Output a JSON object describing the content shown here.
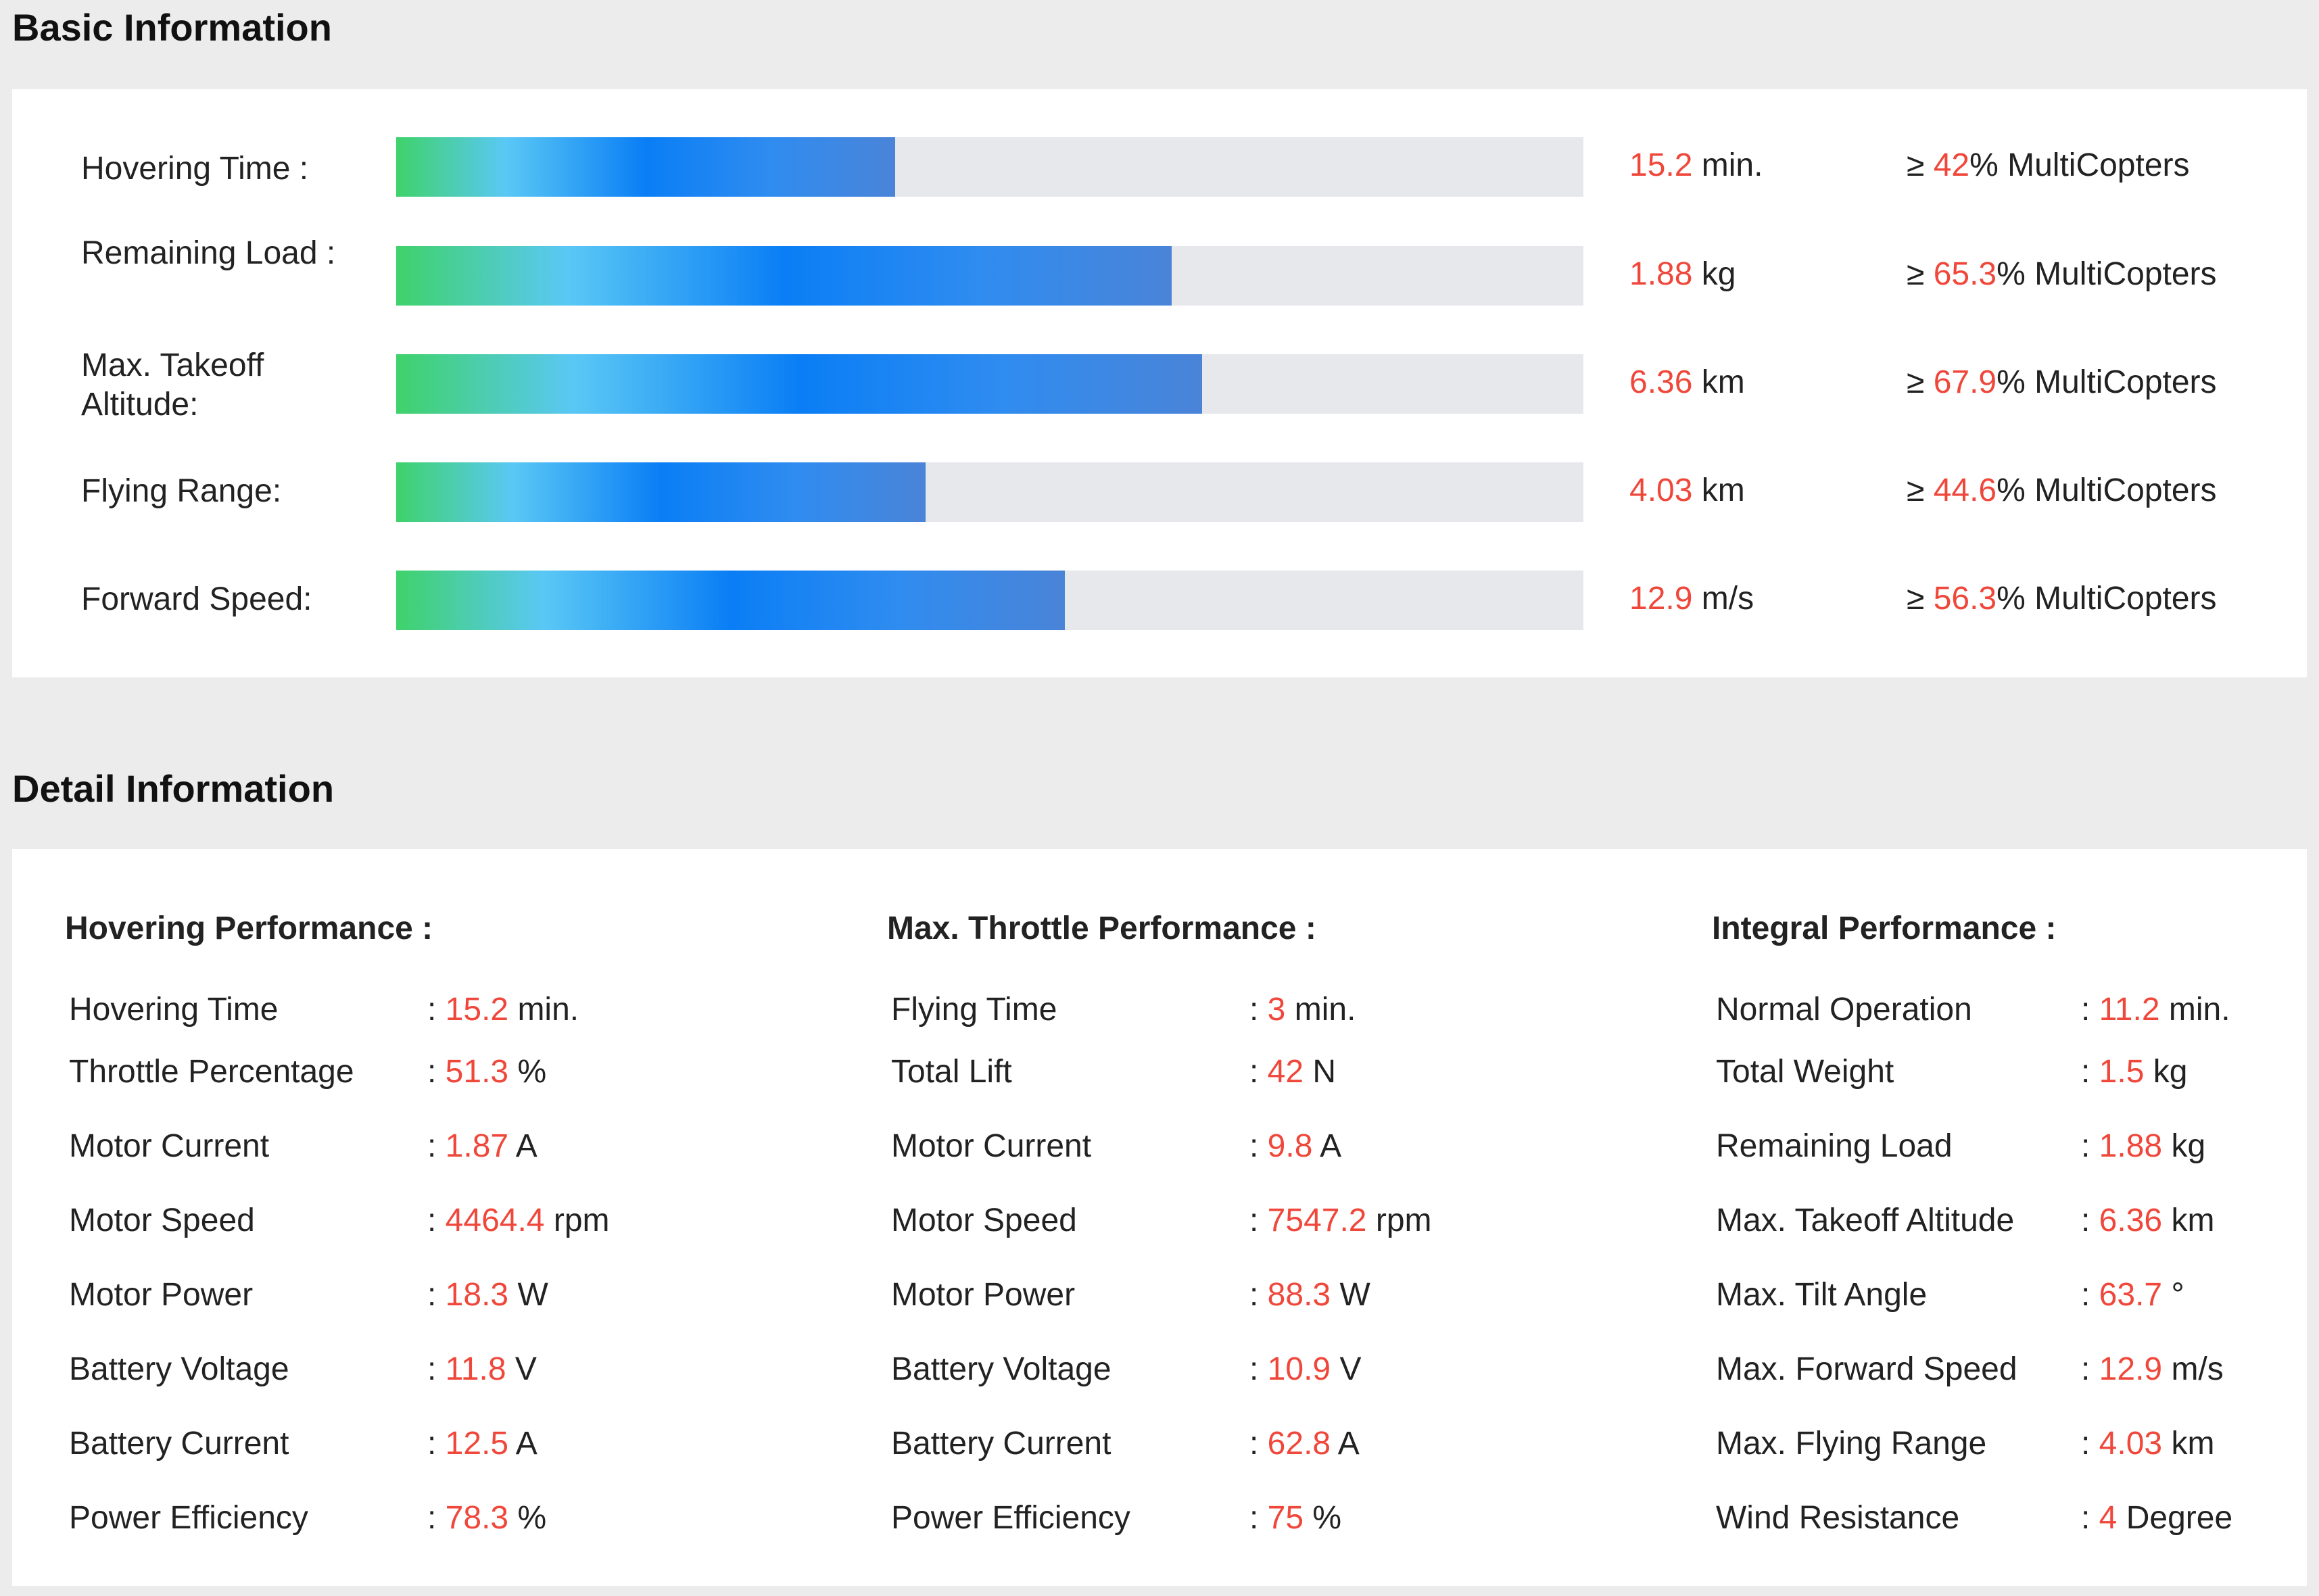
{
  "basic": {
    "title": "Basic Information",
    "rows": [
      {
        "label": "Hovering Time :",
        "percent": 42,
        "value": "15.2",
        "unit": "min.",
        "ge": "≥",
        "pct_text": "42",
        "suffix": "% MultiCopters"
      },
      {
        "label": "Remaining Load :",
        "percent": 65.3,
        "value": "1.88",
        "unit": "kg",
        "ge": "≥",
        "pct_text": "65.3",
        "suffix": "% MultiCopters"
      },
      {
        "label": "Max. Takeoff Altitude:",
        "percent": 67.9,
        "value": "6.36",
        "unit": "km",
        "ge": "≥",
        "pct_text": "67.9",
        "suffix": "% MultiCopters"
      },
      {
        "label": "Flying Range:",
        "percent": 44.6,
        "value": "4.03",
        "unit": "km",
        "ge": "≥",
        "pct_text": "44.6",
        "suffix": "% MultiCopters"
      },
      {
        "label": "Forward Speed:",
        "percent": 56.3,
        "value": "12.9",
        "unit": "m/s",
        "ge": "≥",
        "pct_text": "56.3",
        "suffix": "% MultiCopters"
      }
    ]
  },
  "detail": {
    "title": "Detail Information",
    "columns": [
      {
        "title": "Hovering Performance :",
        "rows": [
          {
            "label": "Hovering Time",
            "value": "15.2",
            "unit": "min."
          },
          {
            "label": "Throttle Percentage",
            "value": "51.3",
            "unit": "%"
          },
          {
            "label": "Motor Current",
            "value": "1.87",
            "unit": "A"
          },
          {
            "label": "Motor Speed",
            "value": "4464.4",
            "unit": "rpm"
          },
          {
            "label": "Motor Power",
            "value": "18.3",
            "unit": "W"
          },
          {
            "label": "Battery Voltage",
            "value": "11.8",
            "unit": "V"
          },
          {
            "label": "Battery Current",
            "value": "12.5",
            "unit": "A"
          },
          {
            "label": "Power Efficiency",
            "value": "78.3",
            "unit": "%"
          }
        ]
      },
      {
        "title": "Max. Throttle Performance :",
        "rows": [
          {
            "label": "Flying Time",
            "value": "3",
            "unit": "min."
          },
          {
            "label": "Total Lift",
            "value": "42",
            "unit": "N"
          },
          {
            "label": "Motor Current",
            "value": "9.8",
            "unit": "A"
          },
          {
            "label": "Motor Speed",
            "value": "7547.2",
            "unit": "rpm"
          },
          {
            "label": "Motor Power",
            "value": "88.3",
            "unit": "W"
          },
          {
            "label": "Battery Voltage",
            "value": "10.9",
            "unit": "V"
          },
          {
            "label": "Battery Current",
            "value": "62.8",
            "unit": "A"
          },
          {
            "label": "Power Efficiency",
            "value": "75",
            "unit": "%"
          }
        ]
      },
      {
        "title": "Integral Performance :",
        "rows": [
          {
            "label": "Normal Operation",
            "value": "11.2",
            "unit": "min."
          },
          {
            "label": "Total Weight",
            "value": "1.5",
            "unit": "kg"
          },
          {
            "label": "Remaining Load",
            "value": "1.88",
            "unit": "kg"
          },
          {
            "label": "Max. Takeoff Altitude",
            "value": "6.36",
            "unit": "km"
          },
          {
            "label": "Max. Tilt Angle",
            "value": "63.7",
            "unit": "°"
          },
          {
            "label": "Max. Forward Speed",
            "value": "12.9",
            "unit": "m/s"
          },
          {
            "label": "Max. Flying Range",
            "value": "4.03",
            "unit": "km"
          },
          {
            "label": "Wind Resistance",
            "value": "4",
            "unit": "Degree"
          }
        ]
      }
    ]
  },
  "colors": {
    "accent_red": "#f0473b",
    "track": "#e6e8eb",
    "gradient_start": "#3fd26a",
    "gradient_mid": "#0a7ef5"
  }
}
